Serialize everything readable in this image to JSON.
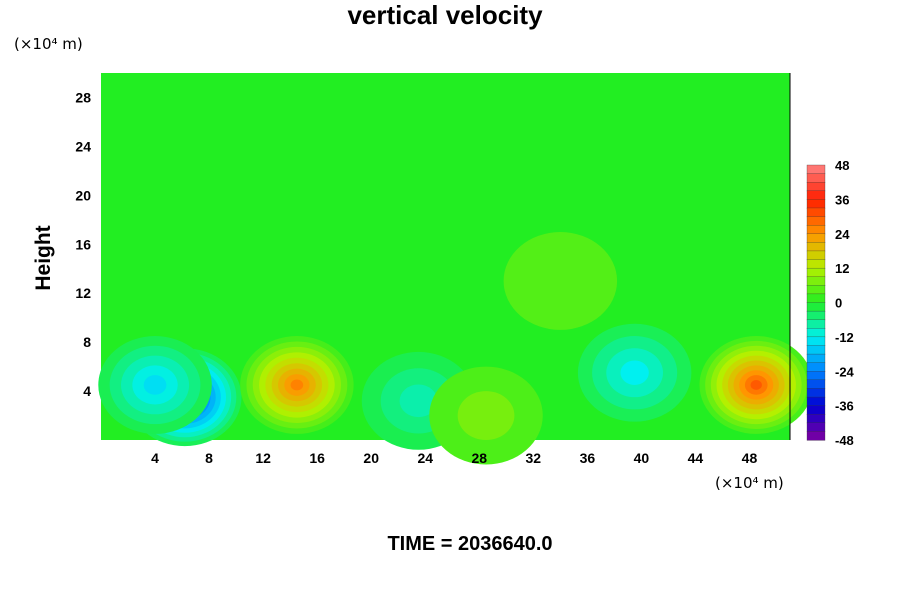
{
  "chart_data": {
    "type": "heatmap",
    "title": "vertical velocity",
    "ylabel": "Height",
    "y_unit": "(×10⁴ m)",
    "x_unit": "(×10⁴ m)",
    "footer": "TIME = 2036640.0",
    "xlim": [
      0,
      51
    ],
    "ylim": [
      0,
      30
    ],
    "x_ticks": [
      "4",
      "8",
      "12",
      "16",
      "20",
      "24",
      "28",
      "32",
      "36",
      "40",
      "44",
      "48"
    ],
    "y_ticks": [
      "4",
      "8",
      "12",
      "16",
      "20",
      "24",
      "28"
    ],
    "colorbar": {
      "range": [
        -48,
        48
      ],
      "ticks": [
        "48",
        "36",
        "24",
        "12",
        "0",
        "-12",
        "-24",
        "-36",
        "-48"
      ]
    },
    "features": [
      {
        "x": 6.2,
        "y": 3.5,
        "value": -34
      },
      {
        "x": 4.0,
        "y": 4.5,
        "value": -14
      },
      {
        "x": 14.5,
        "y": 4.5,
        "value": 26
      },
      {
        "x": 23.5,
        "y": 3.2,
        "value": -8
      },
      {
        "x": 28.5,
        "y": 2.0,
        "value": 7
      },
      {
        "x": 39.5,
        "y": 5.5,
        "value": -12
      },
      {
        "x": 48.5,
        "y": 4.5,
        "value": 30
      },
      {
        "x": 34.0,
        "y": 13.0,
        "value": 4
      }
    ]
  }
}
